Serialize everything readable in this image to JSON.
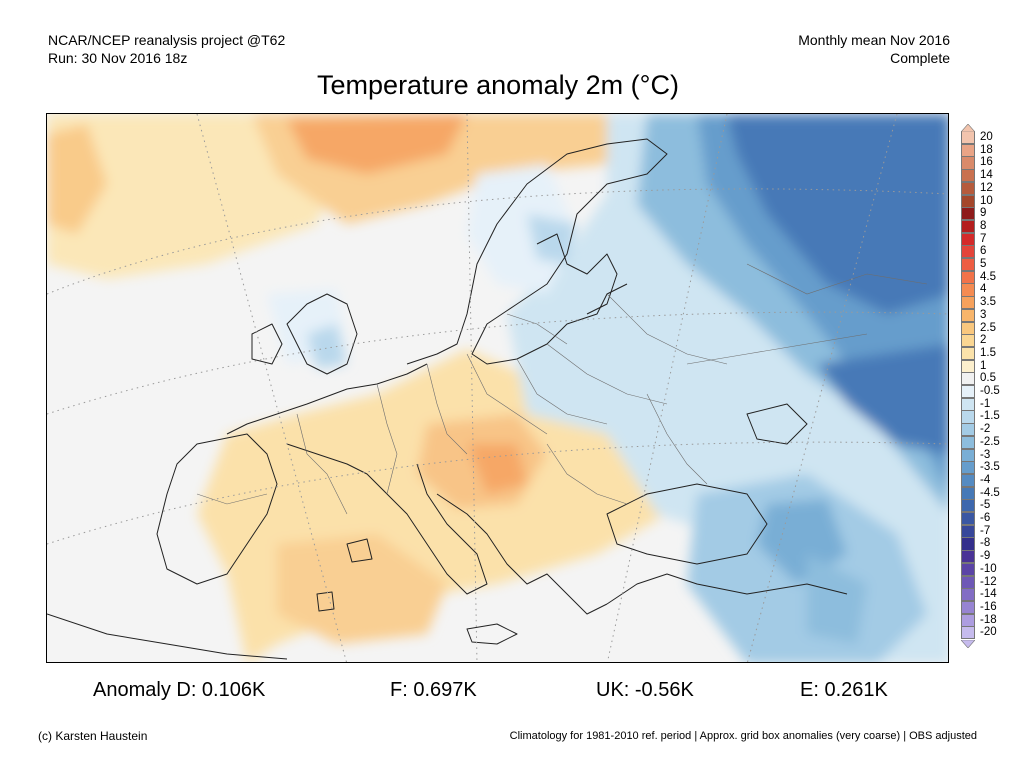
{
  "header": {
    "left_line1": "NCAR/NCEP reanalysis project @T62",
    "left_line2": "Run: 30 Nov 2016 18z",
    "right_line1": "Monthly mean Nov 2016",
    "right_line2": "Complete"
  },
  "title": "Temperature anomaly 2m (°C)",
  "legend": {
    "labels": [
      "20",
      "18",
      "16",
      "14",
      "12",
      "10",
      "9",
      "8",
      "7",
      "6",
      "5",
      "4.5",
      "4",
      "3.5",
      "3",
      "2.5",
      "2",
      "1.5",
      "1",
      "0.5",
      "-0.5",
      "-1",
      "-1.5",
      "-2",
      "-2.5",
      "-3",
      "-3.5",
      "-4",
      "-4.5",
      "-5",
      "-6",
      "-7",
      "-8",
      "-9",
      "-10",
      "-12",
      "-14",
      "-16",
      "-18",
      "-20"
    ],
    "colors": [
      "#f2c4ad",
      "#e9a486",
      "#d98a6a",
      "#c9714f",
      "#b65b3c",
      "#a4472b",
      "#8e1b1b",
      "#b41e1e",
      "#d42a2a",
      "#e3443a",
      "#ee5d43",
      "#f1734a",
      "#f48b52",
      "#f6a15c",
      "#f8b56b",
      "#f9c77e",
      "#fad693",
      "#fbe2aa",
      "#fcefcd",
      "#f1f1f1",
      "#e6f1f9",
      "#cfe5f2",
      "#b9d8ec",
      "#a3cbe5",
      "#8dbddd",
      "#79aed5",
      "#669dcc",
      "#558bc2",
      "#4679b7",
      "#3d67ad",
      "#3a57a3",
      "#37479a",
      "#342f8c",
      "#4a3396",
      "#5b44a6",
      "#6e58b6",
      "#826dc4",
      "#9784d2",
      "#ad9de0",
      "#c6bbed"
    ]
  },
  "stats": {
    "d": "Anomaly D: 0.106K",
    "f": "F: 0.697K",
    "uk": "UK: -0.56K",
    "e": "E: 0.261K"
  },
  "footer": {
    "left": "(c) Karsten Haustein",
    "right": "Climatology for 1981-2010 ref. period | Approx. grid box anomalies (very coarse) | OBS adjusted"
  },
  "map": {
    "region": "Europe",
    "features": [
      "warm-anomaly-central-europe",
      "cold-anomaly-russia",
      "warm-anomaly-greenland-sea",
      "cold-anomaly-turkey",
      "coastlines",
      "country-borders"
    ]
  }
}
